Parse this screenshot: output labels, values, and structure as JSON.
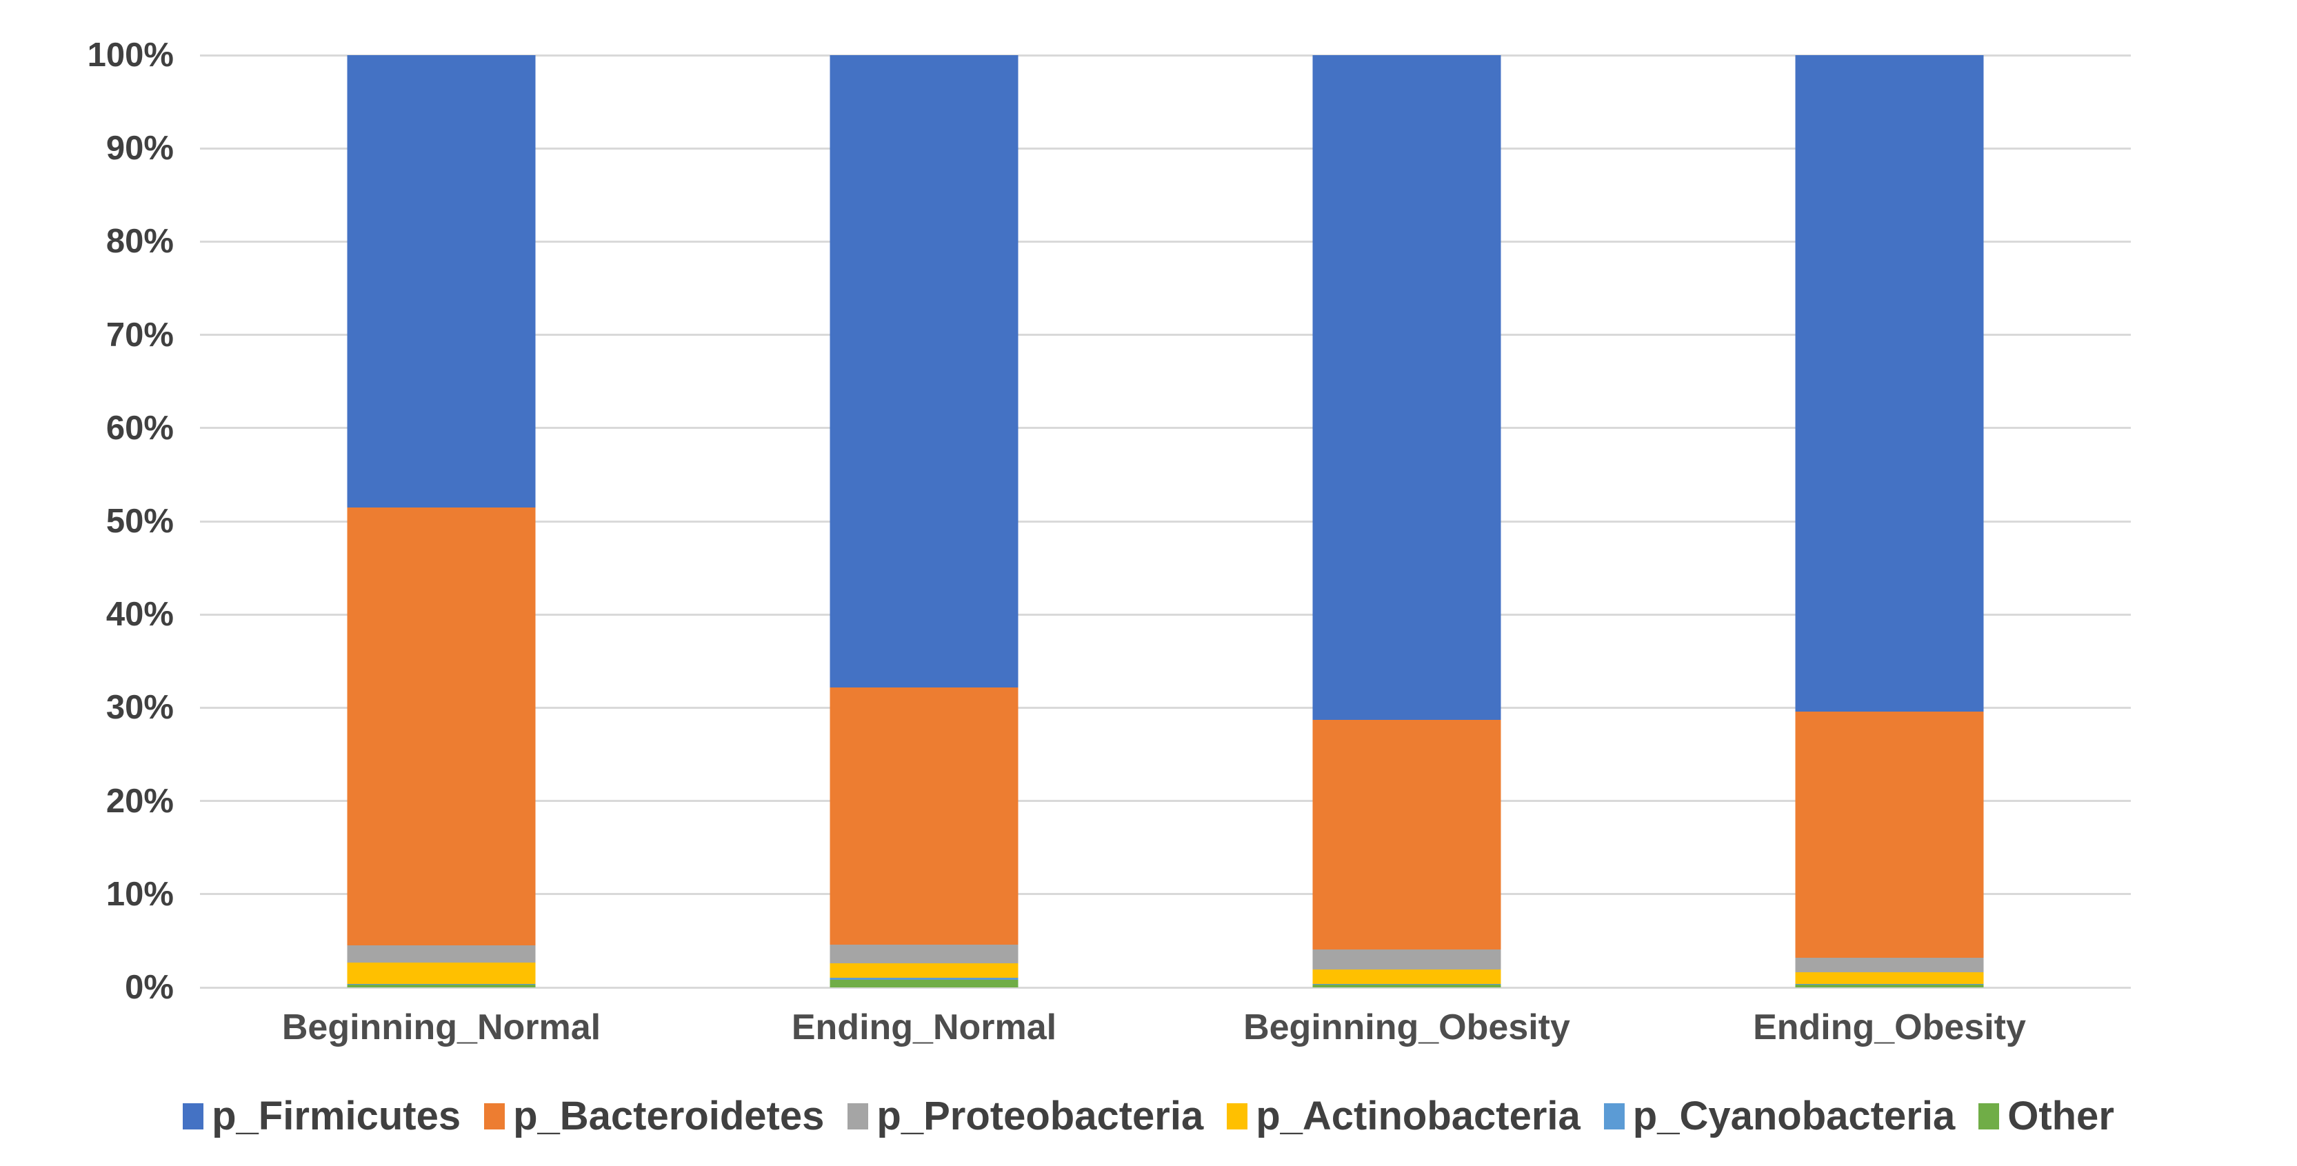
{
  "chart_data": {
    "type": "bar",
    "subtype": "stacked-100-percent-column",
    "title": "",
    "xlabel": "",
    "ylabel": "",
    "ylim": [
      0,
      100
    ],
    "y_tick_step": 10,
    "y_tick_labels": [
      "0%",
      "10%",
      "20%",
      "30%",
      "40%",
      "50%",
      "60%",
      "70%",
      "80%",
      "90%",
      "100%"
    ],
    "grid": true,
    "legend_position": "bottom",
    "categories": [
      "Beginning_Normal",
      "Ending_Normal",
      "Beginning_Obesity",
      "Ending_Obesity"
    ],
    "series": [
      {
        "name": "p_Firmicutes",
        "color": "#4472C4",
        "values": [
          48.5,
          67.8,
          71.3,
          70.4
        ]
      },
      {
        "name": "p_Bacteroidetes",
        "color": "#ED7D31",
        "values": [
          47.0,
          27.6,
          24.6,
          26.4
        ]
      },
      {
        "name": "p_Proteobacteria",
        "color": "#A5A5A5",
        "values": [
          1.8,
          2.0,
          2.2,
          1.6
        ]
      },
      {
        "name": "p_Actinobacteria",
        "color": "#FFC000",
        "values": [
          2.3,
          1.6,
          1.5,
          1.2
        ]
      },
      {
        "name": "p_Cyanobacteria",
        "color": "#5B9BD5",
        "values": [
          0.1,
          0.2,
          0.1,
          0.1
        ]
      },
      {
        "name": "Other",
        "color": "#70AD47",
        "values": [
          0.3,
          0.8,
          0.3,
          0.3
        ]
      }
    ],
    "colors": {
      "gridline": "#d9d9d9",
      "axis_text": "#404040",
      "category_text": "#4d4d4d",
      "background": "#ffffff"
    }
  }
}
